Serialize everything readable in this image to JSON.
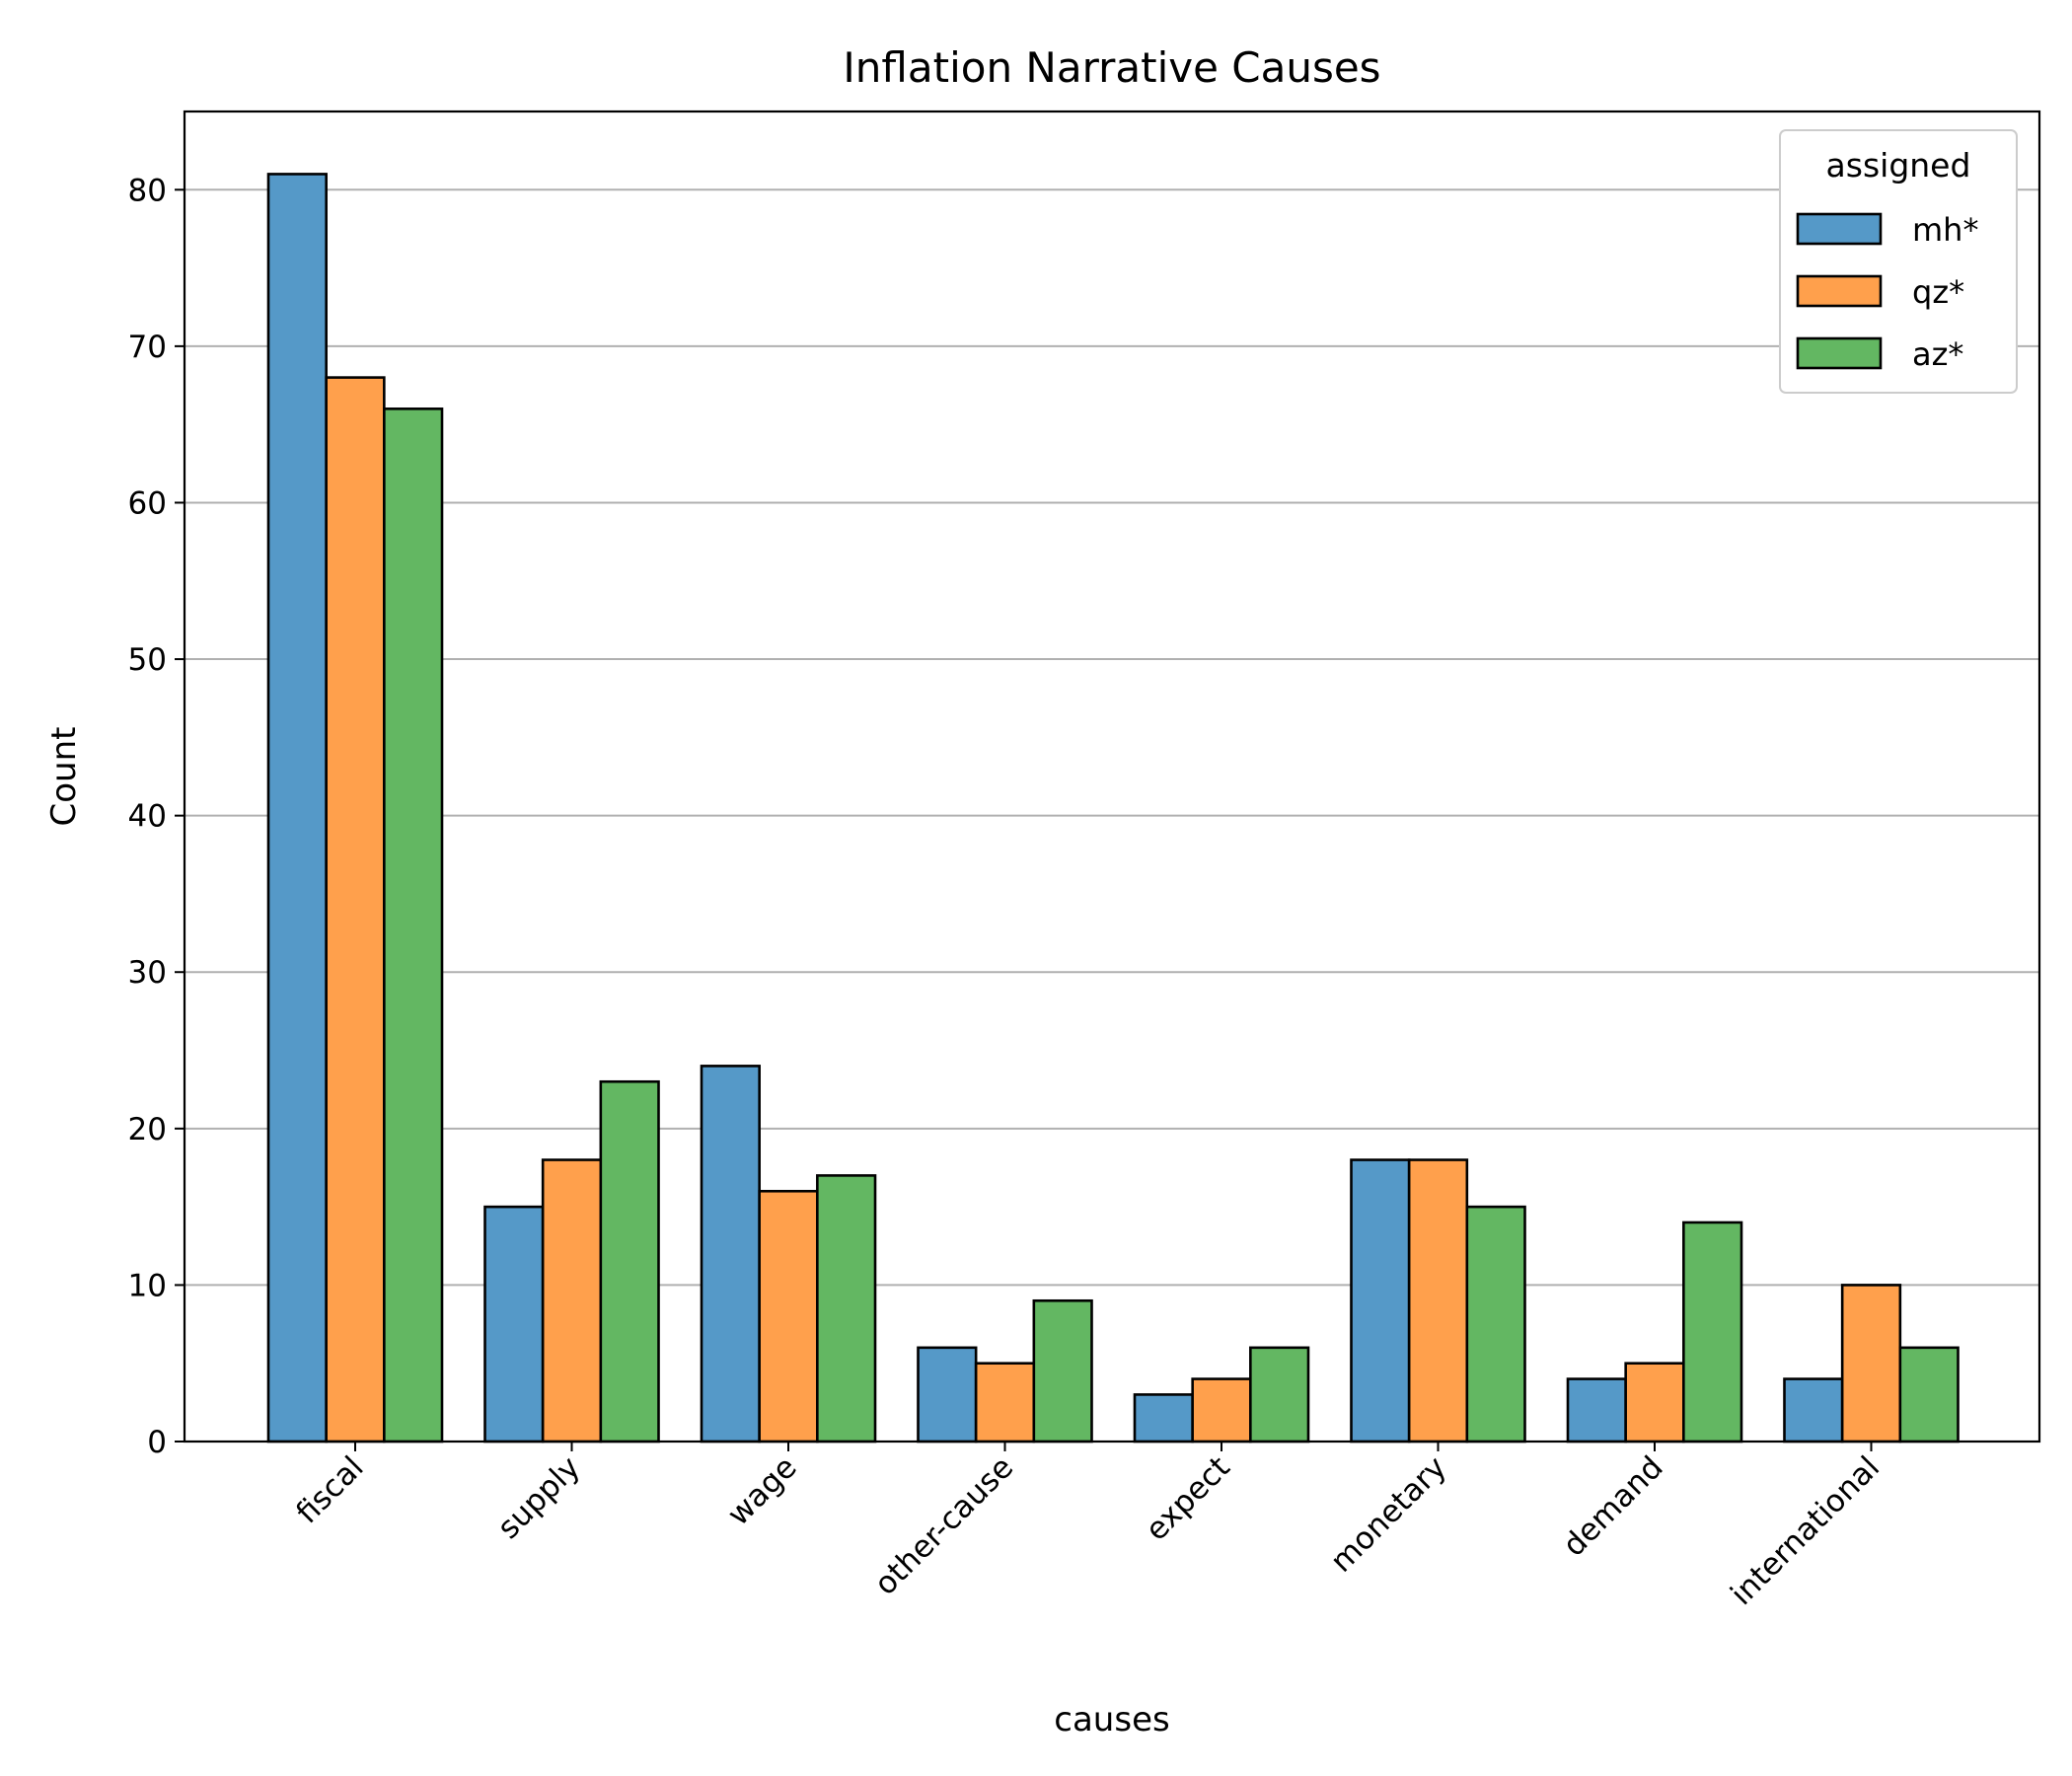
{
  "chart_data": {
    "type": "bar",
    "title": "Inflation Narrative Causes",
    "xlabel": "causes",
    "ylabel": "Count",
    "categories": [
      "fiscal",
      "supply",
      "wage",
      "other-cause",
      "expect",
      "monetary",
      "demand",
      "international"
    ],
    "series": [
      {
        "name": "mh*",
        "color": "#5599c8",
        "values": [
          81,
          15,
          24,
          6,
          3,
          18,
          4,
          4
        ]
      },
      {
        "name": "qz*",
        "color": "#ffa04c",
        "values": [
          68,
          18,
          16,
          5,
          4,
          18,
          5,
          10
        ]
      },
      {
        "name": "az*",
        "color": "#63b762",
        "values": [
          66,
          23,
          17,
          9,
          6,
          15,
          14,
          6
        ]
      }
    ],
    "ylim": [
      0,
      85
    ],
    "yticks": [
      0,
      10,
      20,
      30,
      40,
      50,
      60,
      70,
      80
    ],
    "grid": "horizontal",
    "legend": {
      "title": "assigned",
      "placement": "top-right"
    }
  }
}
